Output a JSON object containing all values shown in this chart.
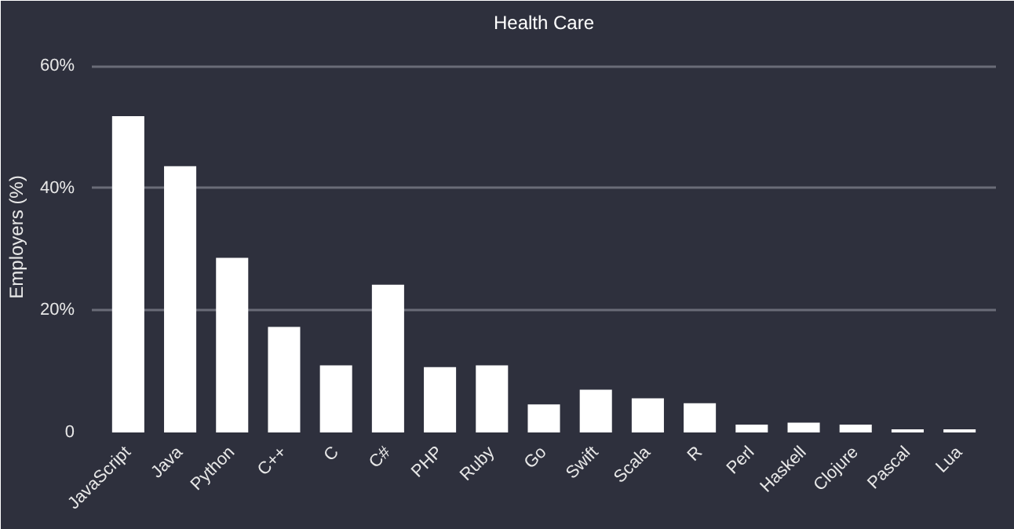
{
  "chart_data": {
    "type": "bar",
    "title": "Health Care",
    "ylabel": "Employers (%)",
    "categories": [
      "JavaScript",
      "Java",
      "Python",
      "C++",
      "C",
      "C#",
      "PHP",
      "Ruby",
      "Go",
      "Swift",
      "Scala",
      "R",
      "Perl",
      "Haskell",
      "Clojure",
      "Pascal",
      "Lua"
    ],
    "values": [
      51.8,
      43.6,
      28.6,
      17.3,
      11.0,
      24.2,
      10.7,
      11.0,
      4.6,
      7.0,
      5.6,
      4.8,
      1.3,
      1.6,
      1.3,
      0.5,
      0.5
    ],
    "color": "#ffffff",
    "ylim": [
      0,
      64
    ],
    "yticks": [
      {
        "value": 0,
        "label": "0"
      },
      {
        "value": 20,
        "label": "20%"
      },
      {
        "value": 40,
        "label": "40%"
      },
      {
        "value": 60,
        "label": "60%"
      }
    ],
    "grid": "y"
  }
}
